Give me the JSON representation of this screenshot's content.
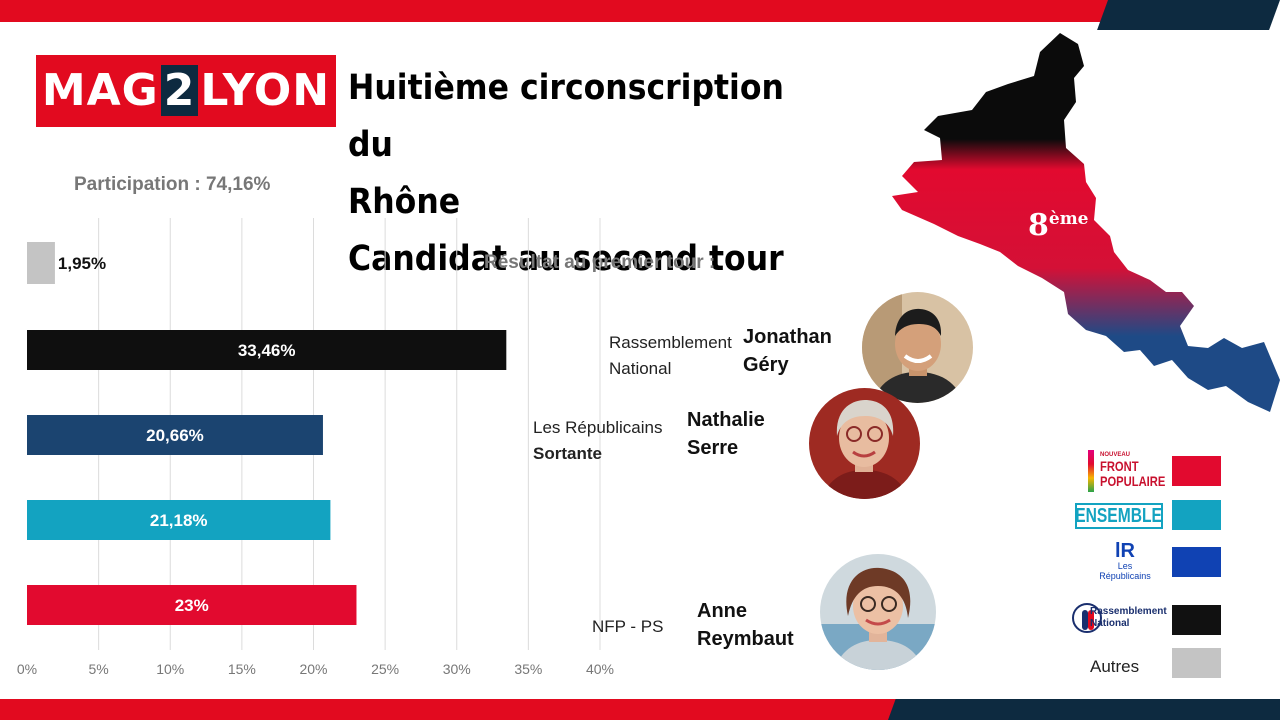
{
  "brand": {
    "logo_left": "MAG",
    "logo_mid": "2",
    "logo_right": "LYON"
  },
  "title_lines": [
    "Huitième circonscription du",
    "Rhône",
    "Candidat au second tour"
  ],
  "participation": "Participation : 74,16%",
  "subtitle": "Résultat au premier tour :",
  "map_label_num": "8",
  "map_label_sup": "ème",
  "candidates": [
    {
      "party": "Rassemblement National",
      "party_line1": "Rassemblement",
      "party_line2": "National",
      "name_line1": "Jonathan",
      "name_line2": "Géry",
      "photo_icon": "man-portrait-icon"
    },
    {
      "party_line1": "Les Républicains",
      "party_line2": "Sortante",
      "name_line1": "Nathalie",
      "name_line2": "Serre",
      "photo_icon": "woman-portrait-icon"
    },
    {
      "party_line1": "NFP - PS",
      "name_line1": "Anne",
      "name_line2": "Reymbaut",
      "photo_icon": "woman-portrait-icon"
    }
  ],
  "legend": [
    {
      "logo_lines": [
        "NOUVEAU",
        "FRONT",
        "POPULAIRE"
      ],
      "color": "#e20a2f"
    },
    {
      "logo_lines": [
        "ENSEMBLE"
      ],
      "color": "#13a3c1"
    },
    {
      "logo_lines": [
        "Les",
        "Républicains"
      ],
      "color": "#1042b3"
    },
    {
      "logo_lines": [
        "Rassemblement",
        "National"
      ],
      "color": "#111111"
    },
    {
      "logo_lines": [
        "Autres"
      ],
      "color": "#c4c4c4"
    }
  ],
  "chart_data": {
    "type": "bar",
    "orientation": "horizontal",
    "categories": [
      "Autres",
      "Rassemblement National",
      "Les Républicains",
      "Ensemble",
      "NFP"
    ],
    "values": [
      1.95,
      33.46,
      20.66,
      21.18,
      23
    ],
    "value_labels": [
      "1,95%",
      "33,46%",
      "20,66%",
      "21,18%",
      "23%"
    ],
    "colors": [
      "#c4c4c4",
      "#0f0f0f",
      "#1b4470",
      "#13a3c1",
      "#e20a2f"
    ],
    "xlim": [
      0,
      40
    ],
    "ticks": [
      0,
      5,
      10,
      15,
      20,
      25,
      30,
      35,
      40
    ],
    "tick_labels": [
      "0%",
      "5%",
      "10%",
      "15%",
      "20%",
      "25%",
      "30%",
      "35%",
      "40%"
    ],
    "grid": true
  }
}
